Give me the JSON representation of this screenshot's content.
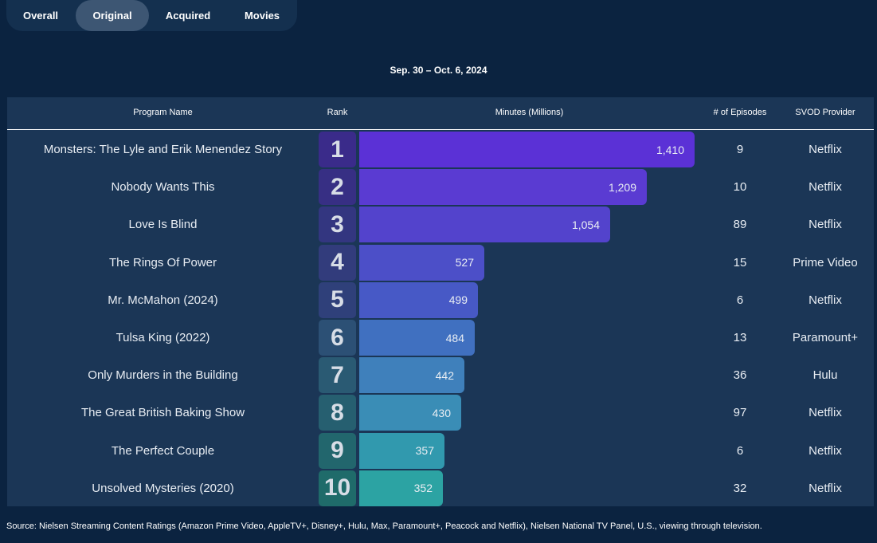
{
  "tabs": [
    {
      "label": "Overall",
      "active": false
    },
    {
      "label": "Original",
      "active": true
    },
    {
      "label": "Acquired",
      "active": false
    },
    {
      "label": "Movies",
      "active": false
    }
  ],
  "period": "Sep. 30 – Oct. 6, 2024",
  "table": {
    "headers": {
      "program": "Program Name",
      "rank": "Rank",
      "minutes": "Minutes (Millions)",
      "episodes": "# of Episodes",
      "provider": "SVOD Provider"
    }
  },
  "chart_data": {
    "type": "bar",
    "orientation": "horizontal",
    "ylabel": "Minutes (Millions)",
    "xlim": [
      0,
      1410
    ],
    "grid": false,
    "categories": [
      "Monsters: The Lyle and Erik Menendez Story",
      "Nobody Wants This",
      "Love Is Blind",
      "The Rings Of Power",
      "Mr. McMahon (2024)",
      "Tulsa King (2022)",
      "Only Murders in the Building",
      "The Great British Baking Show",
      "The Perfect Couple",
      "Unsolved Mysteries (2020)"
    ],
    "ranks": [
      "1",
      "2",
      "3",
      "4",
      "5",
      "6",
      "7",
      "8",
      "9",
      "10"
    ],
    "values": [
      1410,
      1209,
      1054,
      527,
      499,
      484,
      442,
      430,
      357,
      352
    ],
    "value_labels": [
      "1,410",
      "1,209",
      "1,054",
      "527",
      "499",
      "484",
      "442",
      "430",
      "357",
      "352"
    ],
    "episodes": [
      "9",
      "10",
      "89",
      "15",
      "6",
      "13",
      "36",
      "97",
      "6",
      "32"
    ],
    "providers": [
      "Netflix",
      "Netflix",
      "Netflix",
      "Prime Video",
      "Netflix",
      "Paramount+",
      "Hulu",
      "Netflix",
      "Netflix",
      "Netflix"
    ],
    "bar_colors": [
      "#5b31d6",
      "#5a3bd2",
      "#5343cc",
      "#4c4fc8",
      "#4759c6",
      "#4070c0",
      "#3f80bb",
      "#3a8db6",
      "#3199ae",
      "#2ca3a3"
    ],
    "rank_colors": [
      "#3a2b8a",
      "#372f84",
      "#333680",
      "#323c7c",
      "#2f407a",
      "#2c5075",
      "#2a5a73",
      "#265f70",
      "#22666d",
      "#1f6b6a"
    ]
  },
  "source": "Source: Nielsen Streaming Content Ratings (Amazon Prime Video, AppleTV+, Disney+, Hulu, Max, Paramount+, Peacock and Netflix), Nielsen National TV Panel, U.S., viewing through television."
}
